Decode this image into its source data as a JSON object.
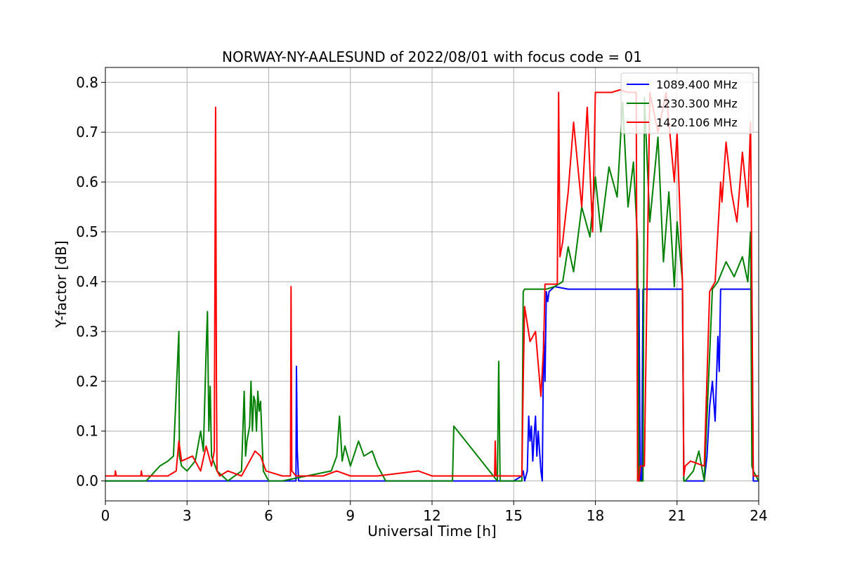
{
  "chart_data": {
    "type": "line",
    "title": "NORWAY-NY-AALESUND of 2022/08/01 with focus code = 01",
    "xlabel": "Universal Time [h]",
    "ylabel": "Y-factor [dB]",
    "xlim": [
      0,
      24
    ],
    "ylim": [
      -0.04,
      0.83
    ],
    "xticks": [
      0,
      3,
      6,
      9,
      12,
      15,
      18,
      21,
      24
    ],
    "xtick_labels": [
      "0",
      "3",
      "6",
      "9",
      "12",
      "15",
      "18",
      "21",
      "24"
    ],
    "yticks": [
      0.0,
      0.1,
      0.2,
      0.3,
      0.4,
      0.5,
      0.6,
      0.7,
      0.8
    ],
    "ytick_labels": [
      "0.0",
      "0.1",
      "0.2",
      "0.3",
      "0.4",
      "0.5",
      "0.6",
      "0.7",
      "0.8"
    ],
    "grid": true,
    "legend_position": "top-right",
    "series": [
      {
        "name": "1089.400 MHz",
        "color": "#0000ff",
        "x": [
          0,
          5.3,
          5.35,
          5.4,
          7.0,
          7.02,
          7.05,
          7.1,
          15.0,
          15.3,
          15.35,
          15.4,
          15.5,
          15.55,
          15.6,
          15.65,
          15.7,
          15.75,
          15.8,
          15.85,
          15.9,
          16.0,
          16.05,
          16.1,
          16.15,
          16.2,
          16.25,
          16.3,
          16.5,
          17.0,
          19.6,
          19.65,
          19.7,
          19.75,
          19.8,
          21.2,
          21.25,
          21.3,
          22.0,
          22.1,
          22.2,
          22.3,
          22.4,
          22.5,
          22.55,
          22.6,
          22.65,
          22.7,
          23.75,
          23.8,
          24.0
        ],
        "y": [
          0.0,
          0.0,
          0.0,
          0.0,
          0.0,
          0.23,
          0.06,
          0.0,
          0.0,
          0.01,
          0.02,
          0.0,
          0.02,
          0.13,
          0.08,
          0.11,
          0.04,
          0.09,
          0.13,
          0.05,
          0.1,
          0.02,
          0.0,
          0.3,
          0.2,
          0.38,
          0.36,
          0.38,
          0.39,
          0.385,
          0.385,
          0.0,
          0.0,
          0.385,
          0.385,
          0.385,
          0.0,
          0.0,
          0.0,
          0.05,
          0.15,
          0.2,
          0.12,
          0.29,
          0.22,
          0.385,
          0.385,
          0.385,
          0.385,
          0.0,
          0.0
        ]
      },
      {
        "name": "1230.300 MHz",
        "color": "#008000",
        "x": [
          0,
          1.5,
          2.0,
          2.3,
          2.5,
          2.7,
          2.72,
          2.8,
          3.0,
          3.3,
          3.5,
          3.6,
          3.7,
          3.75,
          3.8,
          3.85,
          3.9,
          4.1,
          4.5,
          5.0,
          5.1,
          5.15,
          5.2,
          5.3,
          5.35,
          5.4,
          5.45,
          5.5,
          5.55,
          5.6,
          5.65,
          5.7,
          5.75,
          5.8,
          6.0,
          6.5,
          8.3,
          8.5,
          8.6,
          8.7,
          8.8,
          9.0,
          9.3,
          9.5,
          9.8,
          10.0,
          10.3,
          12.0,
          12.75,
          12.8,
          14.4,
          14.45,
          14.5,
          15.3,
          15.35,
          15.4,
          15.6,
          15.9,
          16.2,
          16.5,
          16.8,
          17.0,
          17.2,
          17.5,
          17.8,
          18.0,
          18.2,
          18.5,
          18.8,
          19.0,
          19.2,
          19.4,
          19.55,
          19.6,
          19.65,
          19.75,
          19.8,
          20.0,
          20.3,
          20.5,
          20.7,
          20.9,
          21.0,
          21.2,
          21.25,
          21.3,
          21.6,
          21.8,
          22.0,
          22.3,
          22.5,
          22.8,
          23.1,
          23.4,
          23.6,
          23.7,
          23.75,
          23.8,
          24.0
        ],
        "y": [
          0.0,
          0.0,
          0.03,
          0.04,
          0.05,
          0.3,
          0.05,
          0.03,
          0.02,
          0.04,
          0.1,
          0.06,
          0.26,
          0.34,
          0.1,
          0.19,
          0.05,
          0.02,
          0.0,
          0.02,
          0.18,
          0.05,
          0.08,
          0.11,
          0.2,
          0.1,
          0.17,
          0.16,
          0.1,
          0.18,
          0.14,
          0.16,
          0.09,
          0.02,
          0.0,
          0.0,
          0.02,
          0.05,
          0.13,
          0.04,
          0.07,
          0.03,
          0.08,
          0.05,
          0.06,
          0.03,
          0.0,
          0.0,
          0.0,
          0.11,
          0.0,
          0.24,
          0.0,
          0.0,
          0.38,
          0.385,
          0.385,
          0.385,
          0.385,
          0.39,
          0.4,
          0.47,
          0.42,
          0.55,
          0.49,
          0.61,
          0.5,
          0.63,
          0.57,
          0.76,
          0.55,
          0.64,
          0.48,
          0.0,
          0.0,
          0.0,
          0.77,
          0.52,
          0.69,
          0.44,
          0.58,
          0.39,
          0.52,
          0.4,
          0.0,
          0.0,
          0.02,
          0.06,
          0.0,
          0.385,
          0.4,
          0.44,
          0.41,
          0.45,
          0.4,
          0.5,
          0.03,
          0.02,
          0.0
        ]
      },
      {
        "name": "1420.106 MHz",
        "color": "#ff0000",
        "x": [
          0,
          0.35,
          0.37,
          0.4,
          1.3,
          1.32,
          1.35,
          2.3,
          2.6,
          2.7,
          2.8,
          3.2,
          3.5,
          3.7,
          3.9,
          4.0,
          4.05,
          4.08,
          4.1,
          4.2,
          4.5,
          5.0,
          5.3,
          5.5,
          5.7,
          5.9,
          6.5,
          6.8,
          6.82,
          6.85,
          7.0,
          8.0,
          8.5,
          9.0,
          10.0,
          11.5,
          12.0,
          13.0,
          14.3,
          14.32,
          14.35,
          15.0,
          15.3,
          15.35,
          15.4,
          15.6,
          15.8,
          16.0,
          16.1,
          16.15,
          16.2,
          16.6,
          16.65,
          16.7,
          16.8,
          17.0,
          17.2,
          17.5,
          17.7,
          17.9,
          18.0,
          18.3,
          18.6,
          18.9,
          19.2,
          19.5,
          19.55,
          19.6,
          19.65,
          19.8,
          20.0,
          20.3,
          20.6,
          20.9,
          21.0,
          21.2,
          21.25,
          21.3,
          21.5,
          22.0,
          22.2,
          22.4,
          22.6,
          22.65,
          22.8,
          23.0,
          23.2,
          23.4,
          23.6,
          23.7,
          23.75,
          23.8,
          24.0
        ],
        "y": [
          0.01,
          0.01,
          0.02,
          0.01,
          0.01,
          0.02,
          0.01,
          0.01,
          0.02,
          0.08,
          0.04,
          0.05,
          0.02,
          0.07,
          0.03,
          0.06,
          0.75,
          0.2,
          0.02,
          0.01,
          0.02,
          0.01,
          0.04,
          0.06,
          0.05,
          0.02,
          0.01,
          0.01,
          0.39,
          0.02,
          0.01,
          0.01,
          0.02,
          0.01,
          0.01,
          0.02,
          0.01,
          0.01,
          0.01,
          0.08,
          0.01,
          0.01,
          0.01,
          0.2,
          0.35,
          0.28,
          0.3,
          0.17,
          0.27,
          0.395,
          0.395,
          0.395,
          0.78,
          0.45,
          0.48,
          0.58,
          0.72,
          0.55,
          0.75,
          0.5,
          0.78,
          0.78,
          0.78,
          0.785,
          0.78,
          0.78,
          0.0,
          0.0,
          0.03,
          0.03,
          0.78,
          0.7,
          0.78,
          0.6,
          0.7,
          0.4,
          0.01,
          0.03,
          0.04,
          0.03,
          0.38,
          0.4,
          0.6,
          0.56,
          0.68,
          0.58,
          0.52,
          0.66,
          0.55,
          0.72,
          0.39,
          0.01,
          0.01
        ]
      }
    ]
  }
}
